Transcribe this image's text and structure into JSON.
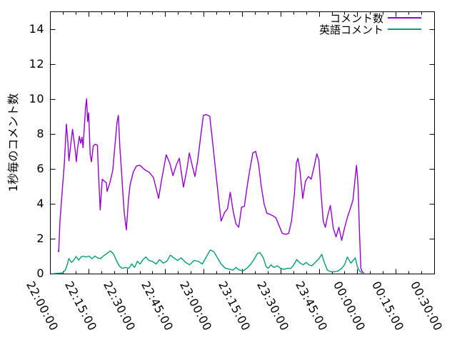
{
  "chart_data": {
    "type": "line",
    "title": "",
    "xlabel": "",
    "ylabel": "1秒毎のコメント数",
    "grid": false,
    "background_color": "#ffffff",
    "border_color": "#000000",
    "text_color": "#000000",
    "legend": {
      "position": "inside-top-right",
      "box": false
    },
    "x_axis": {
      "unit": "time HH:MM:SS",
      "total_minutes": 150,
      "minor_tick_every_minutes": 5,
      "tick_rotation_deg": 62,
      "ticks": [
        {
          "minutes": 0,
          "label": "22:00:00"
        },
        {
          "minutes": 15,
          "label": "22:15:00"
        },
        {
          "minutes": 30,
          "label": "22:30:00"
        },
        {
          "minutes": 45,
          "label": "22:45:00"
        },
        {
          "minutes": 60,
          "label": "23:00:00"
        },
        {
          "minutes": 75,
          "label": "23:15:00"
        },
        {
          "minutes": 90,
          "label": "23:30:00"
        },
        {
          "minutes": 105,
          "label": "23:45:00"
        },
        {
          "minutes": 120,
          "label": "00:00:00"
        },
        {
          "minutes": 135,
          "label": "00:15:00"
        },
        {
          "minutes": 150,
          "label": "00:30:00"
        }
      ]
    },
    "y_axis": {
      "max": 15,
      "min": 0,
      "ticks": [
        {
          "value": 0,
          "label": "0"
        },
        {
          "value": 2,
          "label": "2"
        },
        {
          "value": 4,
          "label": "4"
        },
        {
          "value": 6,
          "label": "6"
        },
        {
          "value": 8,
          "label": "8"
        },
        {
          "value": 10,
          "label": "10"
        },
        {
          "value": 12,
          "label": "12"
        },
        {
          "value": 14,
          "label": "14"
        }
      ]
    },
    "series": [
      {
        "key": "comments",
        "name": "コメント数",
        "color": "#9400D3",
        "x_unit": "minutes since 22:00:00",
        "points": [
          [
            3.2,
            1.3
          ],
          [
            3.4,
            1.25
          ],
          [
            3.9,
            3.0
          ],
          [
            4.7,
            4.6
          ],
          [
            5.6,
            6.3
          ],
          [
            6.4,
            8.55
          ],
          [
            7.0,
            7.5
          ],
          [
            7.4,
            6.45
          ],
          [
            8.1,
            7.4
          ],
          [
            8.8,
            8.25
          ],
          [
            9.4,
            7.6
          ],
          [
            9.9,
            7.0
          ],
          [
            10.3,
            6.4
          ],
          [
            10.7,
            7.1
          ],
          [
            11.5,
            7.85
          ],
          [
            12.0,
            7.45
          ],
          [
            12.5,
            7.8
          ],
          [
            12.9,
            7.2
          ],
          [
            13.9,
            9.55
          ],
          [
            14.3,
            10.0
          ],
          [
            14.7,
            8.7
          ],
          [
            15.1,
            9.2
          ],
          [
            15.7,
            6.8
          ],
          [
            16.2,
            6.4
          ],
          [
            16.9,
            7.3
          ],
          [
            17.6,
            7.4
          ],
          [
            18.5,
            7.35
          ],
          [
            19.0,
            5.6
          ],
          [
            19.6,
            3.65
          ],
          [
            20.4,
            5.4
          ],
          [
            21.1,
            5.3
          ],
          [
            22.0,
            5.2
          ],
          [
            22.3,
            4.7
          ],
          [
            23.4,
            5.2
          ],
          [
            24.5,
            5.9
          ],
          [
            25.4,
            7.4
          ],
          [
            26.2,
            8.7
          ],
          [
            26.7,
            9.05
          ],
          [
            27.3,
            7.2
          ],
          [
            27.9,
            5.9
          ],
          [
            28.4,
            4.7
          ],
          [
            29.0,
            3.5
          ],
          [
            29.8,
            2.5
          ],
          [
            30.7,
            4.3
          ],
          [
            31.3,
            5.1
          ],
          [
            32.5,
            5.8
          ],
          [
            33.7,
            6.15
          ],
          [
            35.1,
            6.2
          ],
          [
            36.9,
            5.95
          ],
          [
            38.7,
            5.8
          ],
          [
            40.4,
            5.5
          ],
          [
            42.4,
            4.3
          ],
          [
            43.5,
            5.3
          ],
          [
            45.4,
            6.8
          ],
          [
            46.8,
            6.3
          ],
          [
            48.0,
            5.6
          ],
          [
            49.3,
            6.2
          ],
          [
            50.5,
            6.6
          ],
          [
            52.1,
            4.95
          ],
          [
            53.4,
            5.9
          ],
          [
            54.4,
            6.9
          ],
          [
            55.5,
            6.2
          ],
          [
            56.6,
            5.55
          ],
          [
            57.7,
            6.5
          ],
          [
            58.8,
            7.8
          ],
          [
            59.9,
            9.05
          ],
          [
            61.0,
            9.1
          ],
          [
            62.4,
            9.0
          ],
          [
            63.5,
            7.5
          ],
          [
            64.6,
            6.0
          ],
          [
            65.7,
            4.5
          ],
          [
            66.8,
            3.0
          ],
          [
            68.2,
            3.5
          ],
          [
            69.3,
            3.7
          ],
          [
            70.4,
            4.65
          ],
          [
            71.5,
            3.6
          ],
          [
            72.6,
            2.85
          ],
          [
            73.7,
            2.65
          ],
          [
            74.8,
            3.8
          ],
          [
            75.9,
            3.85
          ],
          [
            77.0,
            5.0
          ],
          [
            78.1,
            6.0
          ],
          [
            79.2,
            6.9
          ],
          [
            80.3,
            7.0
          ],
          [
            81.4,
            6.3
          ],
          [
            82.5,
            5.0
          ],
          [
            83.6,
            4.0
          ],
          [
            84.7,
            3.45
          ],
          [
            85.8,
            3.4
          ],
          [
            87.1,
            3.3
          ],
          [
            88.2,
            3.2
          ],
          [
            89.3,
            2.8
          ],
          [
            90.7,
            2.3
          ],
          [
            92.1,
            2.25
          ],
          [
            93.2,
            2.3
          ],
          [
            94.3,
            3.0
          ],
          [
            95.4,
            4.5
          ],
          [
            96.2,
            6.3
          ],
          [
            96.8,
            6.6
          ],
          [
            97.6,
            5.9
          ],
          [
            98.7,
            4.3
          ],
          [
            99.8,
            5.3
          ],
          [
            100.9,
            5.55
          ],
          [
            102.0,
            5.4
          ],
          [
            103.1,
            6.1
          ],
          [
            104.2,
            6.85
          ],
          [
            105.0,
            6.5
          ],
          [
            105.9,
            4.5
          ],
          [
            106.7,
            3.0
          ],
          [
            107.5,
            2.65
          ],
          [
            108.4,
            3.3
          ],
          [
            109.5,
            3.9
          ],
          [
            110.6,
            2.6
          ],
          [
            111.7,
            2.1
          ],
          [
            112.8,
            2.65
          ],
          [
            113.9,
            1.9
          ],
          [
            115.0,
            2.6
          ],
          [
            116.1,
            3.2
          ],
          [
            117.2,
            3.7
          ],
          [
            118.3,
            4.2
          ],
          [
            119.1,
            5.4
          ],
          [
            119.7,
            6.2
          ],
          [
            120.3,
            5.0
          ],
          [
            120.8,
            2.5
          ],
          [
            121.4,
            0.3
          ],
          [
            122.0,
            0.08
          ],
          [
            122.5,
            0.05
          ]
        ]
      },
      {
        "key": "english_comments",
        "name": "英語コメント",
        "color": "#009E73",
        "x_unit": "minutes since 22:00:00",
        "points": [
          [
            1.5,
            0.0
          ],
          [
            3.5,
            0.02
          ],
          [
            5.0,
            0.05
          ],
          [
            6.0,
            0.2
          ],
          [
            6.8,
            0.55
          ],
          [
            7.4,
            0.87
          ],
          [
            8.4,
            0.64
          ],
          [
            9.3,
            0.77
          ],
          [
            10.2,
            0.98
          ],
          [
            11.2,
            0.77
          ],
          [
            12.1,
            0.95
          ],
          [
            13.0,
            1.0
          ],
          [
            14.0,
            0.95
          ],
          [
            15.3,
            1.0
          ],
          [
            16.4,
            0.85
          ],
          [
            17.5,
            1.0
          ],
          [
            18.6,
            0.9
          ],
          [
            19.7,
            0.85
          ],
          [
            20.8,
            1.0
          ],
          [
            22.2,
            1.15
          ],
          [
            23.6,
            1.3
          ],
          [
            24.7,
            1.15
          ],
          [
            25.8,
            0.8
          ],
          [
            27.0,
            0.45
          ],
          [
            28.1,
            0.3
          ],
          [
            29.5,
            0.35
          ],
          [
            30.8,
            0.3
          ],
          [
            31.9,
            0.55
          ],
          [
            33.0,
            0.35
          ],
          [
            34.1,
            0.7
          ],
          [
            35.2,
            0.55
          ],
          [
            36.3,
            0.8
          ],
          [
            37.5,
            0.95
          ],
          [
            38.6,
            0.75
          ],
          [
            40.0,
            0.7
          ],
          [
            41.4,
            0.55
          ],
          [
            42.8,
            0.8
          ],
          [
            44.2,
            0.6
          ],
          [
            45.6,
            0.7
          ],
          [
            47.0,
            1.05
          ],
          [
            48.4,
            0.9
          ],
          [
            49.8,
            0.75
          ],
          [
            51.2,
            0.9
          ],
          [
            52.9,
            0.65
          ],
          [
            54.5,
            0.5
          ],
          [
            56.2,
            0.75
          ],
          [
            57.9,
            0.7
          ],
          [
            59.5,
            0.55
          ],
          [
            61.2,
            1.0
          ],
          [
            62.6,
            1.35
          ],
          [
            64.0,
            1.25
          ],
          [
            65.4,
            0.9
          ],
          [
            66.8,
            0.55
          ],
          [
            68.5,
            0.3
          ],
          [
            70.1,
            0.25
          ],
          [
            71.5,
            0.2
          ],
          [
            72.6,
            0.35
          ],
          [
            74.0,
            0.2
          ],
          [
            75.4,
            0.15
          ],
          [
            76.8,
            0.3
          ],
          [
            78.2,
            0.5
          ],
          [
            79.6,
            0.8
          ],
          [
            81.0,
            1.15
          ],
          [
            82.0,
            1.2
          ],
          [
            83.3,
            0.9
          ],
          [
            84.4,
            0.4
          ],
          [
            85.2,
            0.3
          ],
          [
            86.3,
            0.5
          ],
          [
            87.4,
            0.35
          ],
          [
            88.8,
            0.45
          ],
          [
            90.0,
            0.3
          ],
          [
            91.3,
            0.25
          ],
          [
            92.7,
            0.3
          ],
          [
            94.1,
            0.3
          ],
          [
            95.2,
            0.5
          ],
          [
            96.3,
            0.8
          ],
          [
            97.7,
            0.6
          ],
          [
            98.9,
            0.5
          ],
          [
            100.0,
            0.65
          ],
          [
            101.1,
            0.5
          ],
          [
            102.2,
            0.45
          ],
          [
            103.3,
            0.6
          ],
          [
            105.0,
            0.85
          ],
          [
            106.1,
            1.1
          ],
          [
            107.2,
            0.6
          ],
          [
            108.3,
            0.2
          ],
          [
            109.7,
            0.1
          ],
          [
            111.1,
            0.1
          ],
          [
            112.5,
            0.15
          ],
          [
            113.9,
            0.3
          ],
          [
            115.0,
            0.5
          ],
          [
            116.1,
            0.95
          ],
          [
            117.5,
            0.6
          ],
          [
            119.2,
            0.9
          ],
          [
            120.0,
            0.4
          ],
          [
            120.9,
            0.15
          ],
          [
            121.7,
            0.05
          ]
        ]
      }
    ]
  }
}
